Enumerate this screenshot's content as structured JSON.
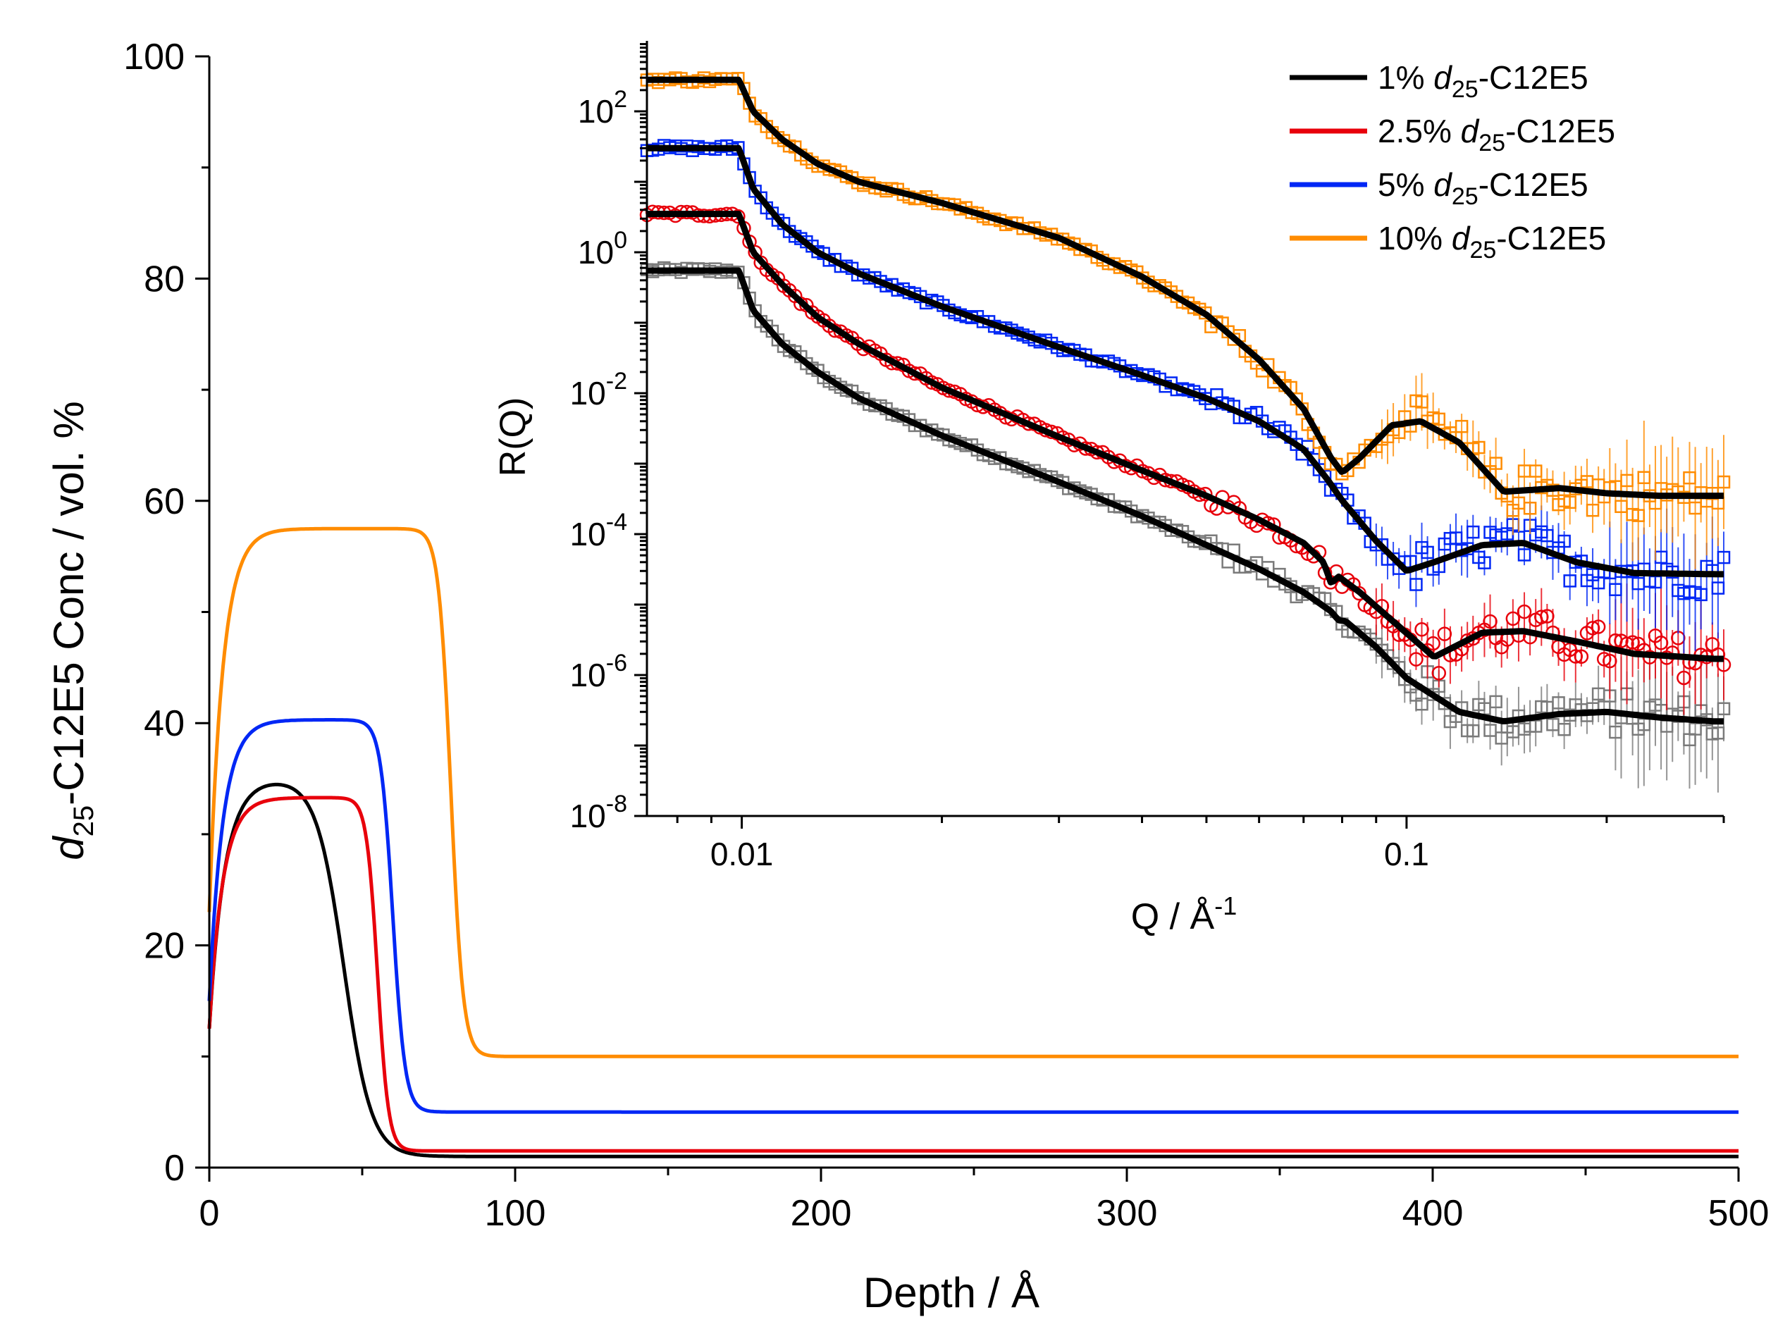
{
  "chart_data": [
    {
      "type": "line",
      "name": "volume fraction profile",
      "xlabel": "Depth / Å",
      "ylabel": {
        "prefix": "d",
        "sub": "25",
        "suffix": "-C12E5 Conc / vol. %"
      },
      "xlim": [
        0,
        500
      ],
      "ylim": [
        0,
        100
      ],
      "xticks": [
        0,
        100,
        200,
        300,
        400,
        500
      ],
      "yticks": [
        0,
        20,
        40,
        60,
        80,
        100
      ],
      "series": [
        {
          "name": "1% d25-C12E5",
          "color": "#000000",
          "start": 12.5,
          "plateau": 35.0,
          "rise": 25,
          "edge": 44,
          "width": 4.5,
          "bulk": 1.0
        },
        {
          "name": "2.5% d25-C12E5",
          "color": "#e8000b",
          "start": 12.5,
          "plateau": 33.3,
          "rise": 22,
          "edge": 55,
          "width": 1.8,
          "bulk": 1.5
        },
        {
          "name": "5% d25-C12E5",
          "color": "#0027f5",
          "start": 15.0,
          "plateau": 40.3,
          "rise": 22,
          "edge": 60,
          "width": 2.0,
          "bulk": 5.0
        },
        {
          "name": "10% d25-C12E5",
          "color": "#ff8c00",
          "start": 23.0,
          "plateau": 57.5,
          "rise": 22,
          "edge": 79,
          "width": 2.0,
          "bulk": 10.0
        }
      ]
    },
    {
      "type": "scatter",
      "name": "reflectivity inset",
      "xlabel": "Q / Å",
      "xlabel_sup": "-1",
      "ylabel": "R(Q)",
      "xscale": "log",
      "yscale": "log",
      "xlim": [
        0.0072,
        0.3
      ],
      "ylim": [
        1e-08,
        1000
      ],
      "xtick_labels": [
        {
          "value": 0.01,
          "label": "0.01"
        },
        {
          "value": 0.1,
          "label": "0.1"
        }
      ],
      "ytick_labels": [
        {
          "value": 100,
          "base": "10",
          "exp": "2"
        },
        {
          "value": 1,
          "base": "10",
          "exp": "0"
        },
        {
          "value": 0.01,
          "base": "10",
          "exp": "-2"
        },
        {
          "value": 0.0001,
          "base": "10",
          "exp": "-4"
        },
        {
          "value": 1e-06,
          "base": "10",
          "exp": "-6"
        },
        {
          "value": 1e-08,
          "base": "10",
          "exp": "-8"
        }
      ],
      "fit_color": "#000000",
      "legend_position": "top-right",
      "legend": [
        {
          "color": "#000000",
          "prefix": "1% ",
          "italic": "d",
          "sub": "25",
          "suffix": "-C12E5"
        },
        {
          "color": "#e8000b",
          "prefix": "2.5% ",
          "italic": "d",
          "sub": "25",
          "suffix": "-C12E5"
        },
        {
          "color": "#0027f5",
          "prefix": "5% ",
          "italic": "d",
          "sub": "25",
          "suffix": "-C12E5"
        },
        {
          "color": "#ff8c00",
          "prefix": "10% ",
          "italic": "d",
          "sub": "25",
          "suffix": "-C12E5"
        }
      ],
      "series": [
        {
          "name": "1% d25-C12E5",
          "color": "#7a7a7a",
          "marker": "square",
          "points": [
            [
              0.0072,
              0.55
            ],
            [
              0.0099,
              0.55
            ],
            [
              0.0104,
              0.15
            ],
            [
              0.0115,
              0.05
            ],
            [
              0.013,
              0.02
            ],
            [
              0.015,
              0.0085
            ],
            [
              0.02,
              0.0025
            ],
            [
              0.03,
              0.00055
            ],
            [
              0.04,
              0.00018
            ],
            [
              0.05,
              7e-05
            ],
            [
              0.06,
              3.2e-05
            ],
            [
              0.07,
              1.5e-05
            ],
            [
              0.077,
              8e-06
            ],
            [
              0.079,
              6e-06
            ],
            [
              0.081,
              5.8e-06
            ],
            [
              0.09,
              2.5e-06
            ],
            [
              0.1,
              9e-07
            ],
            [
              0.12,
              3e-07
            ],
            [
              0.14,
              2.2e-07
            ],
            [
              0.17,
              2.8e-07
            ],
            [
              0.2,
              3e-07
            ],
            [
              0.24,
              2.5e-07
            ],
            [
              0.29,
              2.2e-07
            ]
          ]
        },
        {
          "name": "2.5% d25-C12E5",
          "color": "#e8000b",
          "marker": "circle",
          "points": [
            [
              0.0072,
              3.5
            ],
            [
              0.0099,
              3.5
            ],
            [
              0.0104,
              1.0
            ],
            [
              0.0115,
              0.35
            ],
            [
              0.013,
              0.12
            ],
            [
              0.015,
              0.05
            ],
            [
              0.02,
              0.012
            ],
            [
              0.03,
              0.0024
            ],
            [
              0.04,
              0.0008
            ],
            [
              0.05,
              0.00035
            ],
            [
              0.06,
              0.00016
            ],
            [
              0.07,
              7.5e-05
            ],
            [
              0.075,
              4e-05
            ],
            [
              0.077,
              2e-05
            ],
            [
              0.079,
              2.5e-05
            ],
            [
              0.085,
              1.5e-05
            ],
            [
              0.095,
              6e-06
            ],
            [
              0.11,
              1.8e-06
            ],
            [
              0.13,
              4e-06
            ],
            [
              0.15,
              4.2e-06
            ],
            [
              0.18,
              3e-06
            ],
            [
              0.22,
              2e-06
            ],
            [
              0.29,
              1.7e-06
            ]
          ]
        },
        {
          "name": "5% d25-C12E5",
          "color": "#0027f5",
          "marker": "square",
          "points": [
            [
              0.0072,
              30
            ],
            [
              0.0099,
              30
            ],
            [
              0.0104,
              8
            ],
            [
              0.0115,
              2.5
            ],
            [
              0.013,
              1.0
            ],
            [
              0.015,
              0.5
            ],
            [
              0.02,
              0.17
            ],
            [
              0.03,
              0.045
            ],
            [
              0.04,
              0.018
            ],
            [
              0.05,
              0.0085
            ],
            [
              0.06,
              0.004
            ],
            [
              0.07,
              0.0016
            ],
            [
              0.076,
              0.0006
            ],
            [
              0.08,
              0.0003
            ],
            [
              0.09,
              8e-05
            ],
            [
              0.1,
              3e-05
            ],
            [
              0.11,
              4e-05
            ],
            [
              0.13,
              7e-05
            ],
            [
              0.15,
              7.5e-05
            ],
            [
              0.18,
              4e-05
            ],
            [
              0.22,
              2.8e-05
            ],
            [
              0.29,
              2.7e-05
            ]
          ]
        },
        {
          "name": "10% d25-C12E5",
          "color": "#ff8c00",
          "marker": "square",
          "points": [
            [
              0.0072,
              280
            ],
            [
              0.0099,
              280
            ],
            [
              0.0104,
              100
            ],
            [
              0.0115,
              40
            ],
            [
              0.013,
              18
            ],
            [
              0.015,
              10
            ],
            [
              0.02,
              5
            ],
            [
              0.03,
              1.6
            ],
            [
              0.04,
              0.45
            ],
            [
              0.05,
              0.13
            ],
            [
              0.06,
              0.03
            ],
            [
              0.07,
              0.006
            ],
            [
              0.077,
              0.0012
            ],
            [
              0.08,
              0.00075
            ],
            [
              0.085,
              0.0012
            ],
            [
              0.095,
              0.0035
            ],
            [
              0.105,
              0.004
            ],
            [
              0.12,
              0.002
            ],
            [
              0.14,
              0.0004
            ],
            [
              0.17,
              0.00045
            ],
            [
              0.2,
              0.00038
            ],
            [
              0.24,
              0.00035
            ],
            [
              0.29,
              0.00035
            ]
          ]
        }
      ]
    }
  ]
}
